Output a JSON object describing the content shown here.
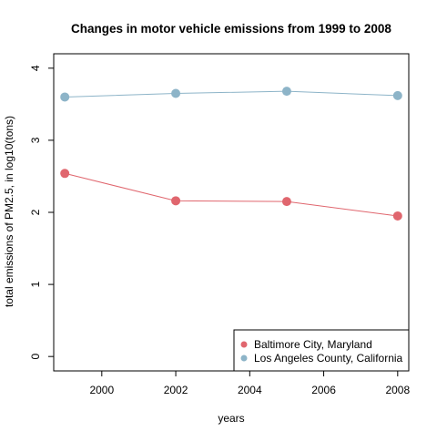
{
  "chart_data": {
    "type": "line",
    "title": "Changes in motor vehicle emissions from 1999 to 2008",
    "xlabel": "years",
    "ylabel": "total emissions of PM2.5, in log10(tons)",
    "x": [
      1999,
      2002,
      2005,
      2008
    ],
    "xlim": [
      1998.7,
      2008.3
    ],
    "ylim": [
      -0.2,
      4.2
    ],
    "xticks": [
      2000,
      2002,
      2004,
      2006,
      2008
    ],
    "yticks": [
      0,
      1,
      2,
      3,
      4
    ],
    "grid": false,
    "legend_position": "bottom-right",
    "series": [
      {
        "name": "Baltimore City, Maryland",
        "color": "#e0666e",
        "values": [
          2.54,
          2.16,
          2.15,
          1.95
        ]
      },
      {
        "name": "Los Angeles County, California",
        "color": "#8db4c8",
        "values": [
          3.6,
          3.65,
          3.68,
          3.62
        ]
      }
    ]
  }
}
